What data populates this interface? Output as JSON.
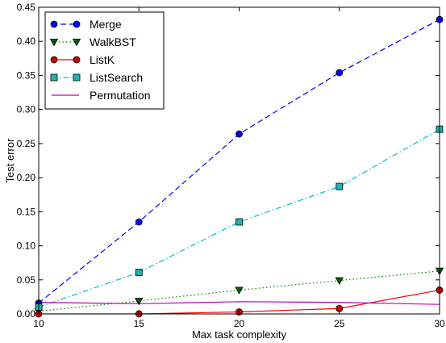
{
  "chart_data": {
    "type": "line",
    "xlabel": "Max task complexity",
    "ylabel": "Test error",
    "xlim": [
      10,
      30
    ],
    "ylim": [
      0,
      0.45
    ],
    "x_ticks": [
      10,
      15,
      20,
      25,
      30
    ],
    "x_tick_labels": [
      "10",
      "15",
      "20",
      "25",
      "30"
    ],
    "y_ticks": [
      0.0,
      0.05,
      0.1,
      0.15,
      0.2,
      0.25,
      0.3,
      0.35,
      0.4,
      0.45
    ],
    "y_tick_labels": [
      "0.00",
      "0.05",
      "0.10",
      "0.15",
      "0.20",
      "0.25",
      "0.30",
      "0.35",
      "0.40",
      "0.45"
    ],
    "grid": false,
    "legend_position": "top-left",
    "series": [
      {
        "name": "Merge",
        "color": "#0000ff",
        "line_style": "dashed",
        "marker": "circle",
        "marker_fill": "#0000ff",
        "x": [
          10,
          15,
          20,
          25,
          30
        ],
        "y": [
          0.016,
          0.135,
          0.264,
          0.354,
          0.432
        ]
      },
      {
        "name": "WalkBST",
        "color": "#008000",
        "line_style": "dotted",
        "marker": "triangle-down",
        "marker_fill": "#006400",
        "x": [
          10,
          15,
          20,
          25,
          30
        ],
        "y": [
          0.004,
          0.019,
          0.035,
          0.049,
          0.063
        ]
      },
      {
        "name": "ListK",
        "color": "#ff0000",
        "line_style": "solid",
        "marker": "circle",
        "marker_fill": "#cc0000",
        "x": [
          10,
          15,
          20,
          25,
          30
        ],
        "y": [
          0.0,
          0.0,
          0.003,
          0.008,
          0.035
        ]
      },
      {
        "name": "ListSearch",
        "color": "#00bfbf",
        "line_style": "dashdot",
        "marker": "square",
        "marker_fill": "#1fb3b3",
        "x": [
          10,
          15,
          20,
          25,
          30
        ],
        "y": [
          0.01,
          0.061,
          0.135,
          0.187,
          0.271
        ]
      },
      {
        "name": "Permutation",
        "color": "#bf00bf",
        "line_style": "solid",
        "marker": "none",
        "marker_fill": "#bf00bf",
        "x": [
          10,
          15,
          20,
          25,
          30
        ],
        "y": [
          0.017,
          0.015,
          0.018,
          0.017,
          0.014
        ]
      }
    ]
  }
}
